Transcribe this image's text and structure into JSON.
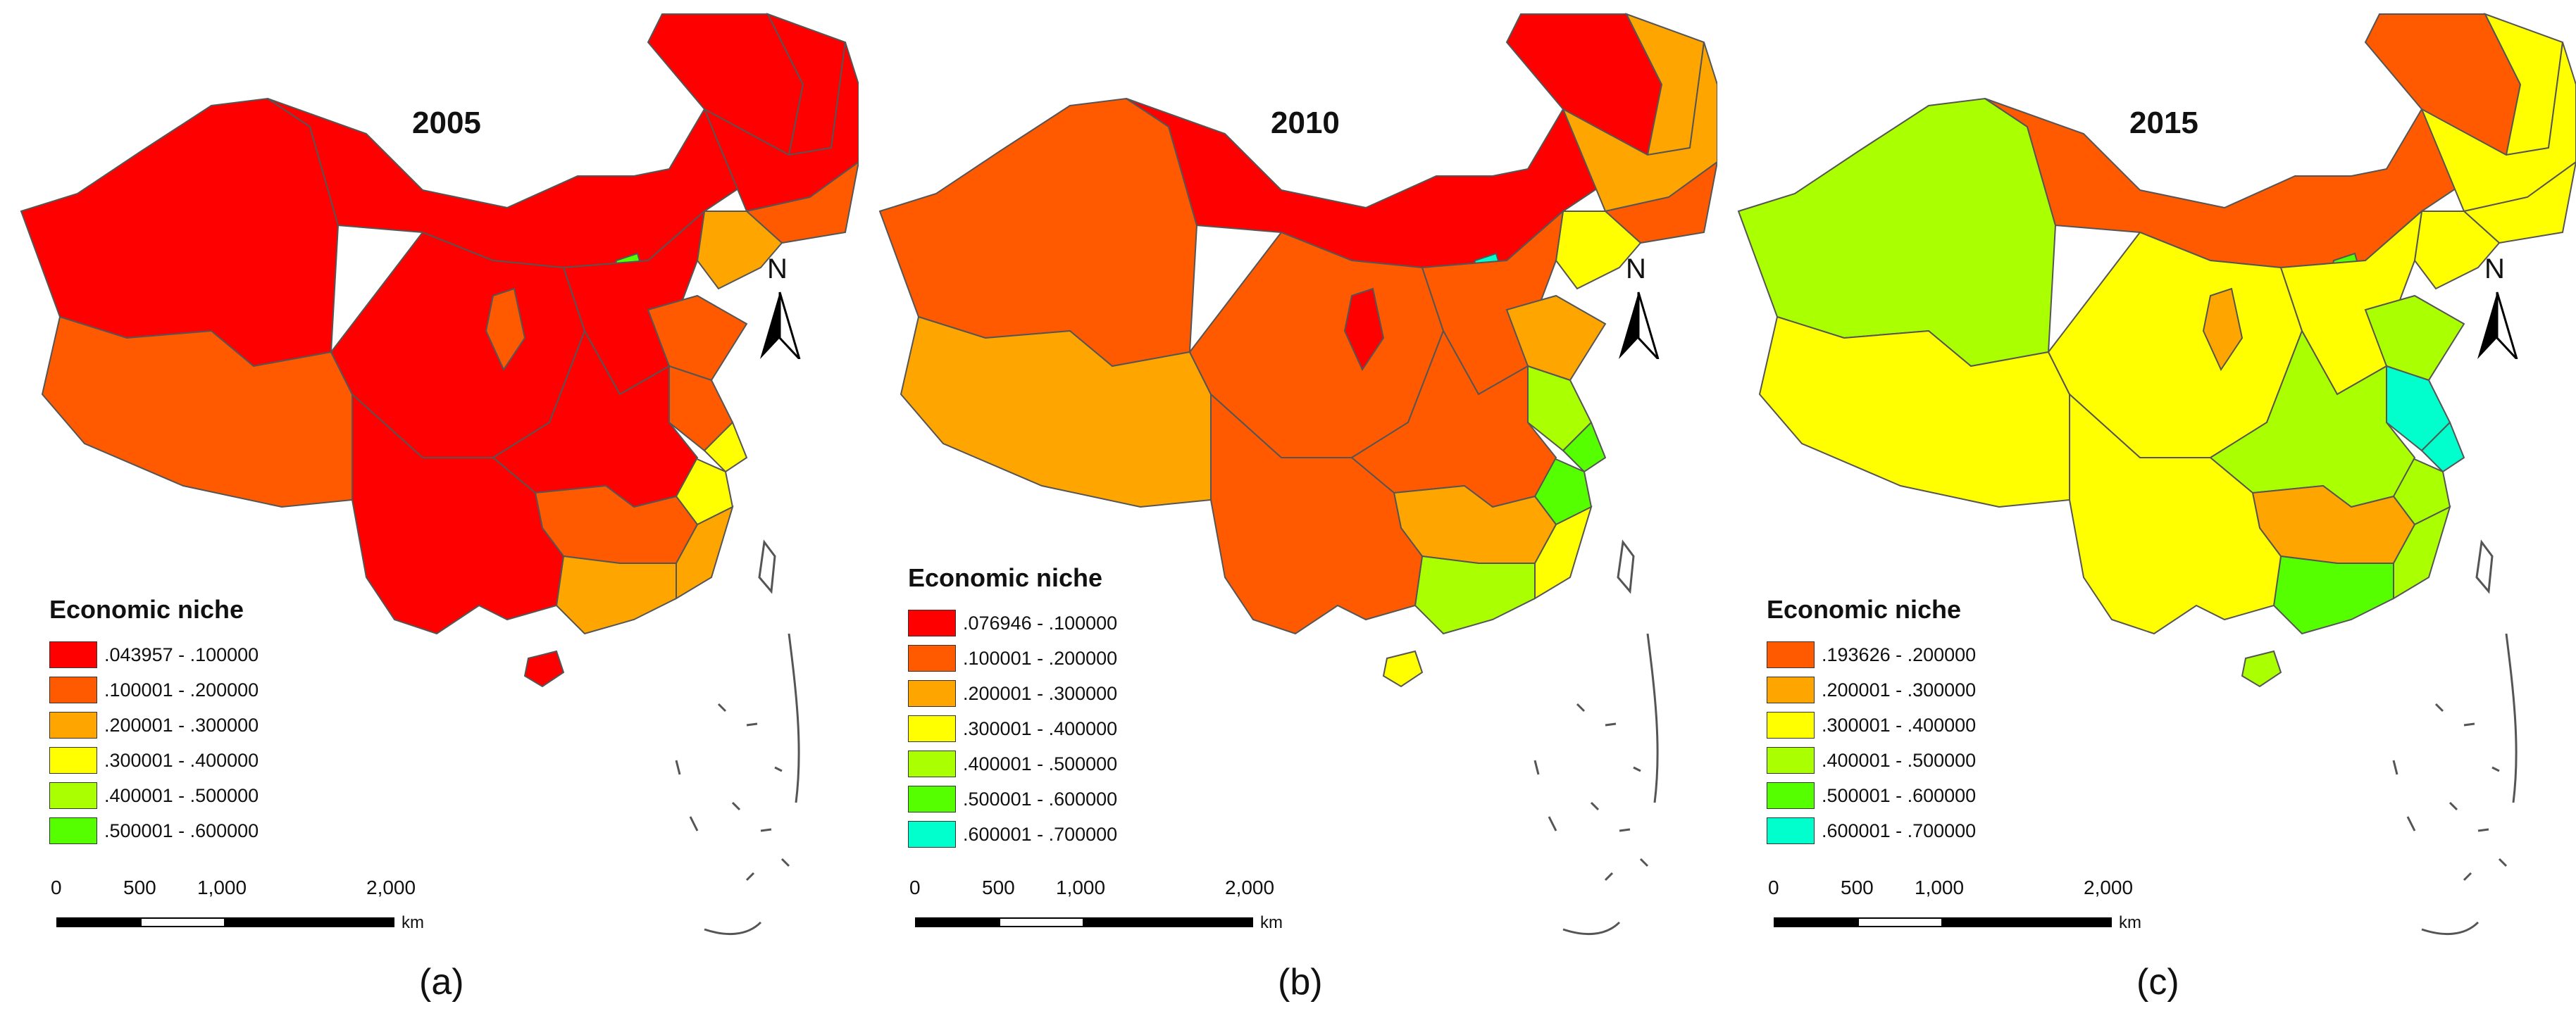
{
  "panels": [
    {
      "year": "2005",
      "caption": "(a)",
      "legend_title": "Economic niche",
      "legend": [
        {
          "label": ".043957 - .100000",
          "color": "#ff0000"
        },
        {
          "label": ".100001 - .200000",
          "color": "#ff5a00"
        },
        {
          "label": ".200001 - .300000",
          "color": "#ffa500"
        },
        {
          "label": ".300001 - .400000",
          "color": "#ffff00"
        },
        {
          "label": ".400001 - .500000",
          "color": "#aaff00"
        },
        {
          "label": ".500001 - .600000",
          "color": "#55ff00"
        }
      ],
      "regions": {
        "west": "#ff0000",
        "tibet": "#ff5a00",
        "inner_mongolia": "#ff0000",
        "northeast": "#ff0000",
        "heilongjiang": "#ff0000",
        "jilin": "#ff5a00",
        "liaoning": "#ffa500",
        "beijing": "#55ff00",
        "central_west": "#ff0000",
        "ningxia": "#ff5a00",
        "north_china": "#ff0000",
        "shandong": "#ff5a00",
        "jiangsu": "#ff5a00",
        "shanghai": "#ffff00",
        "zhejiang": "#ffff00",
        "central": "#ff0000",
        "hunan_jiangxi": "#ff5a00",
        "fujian": "#ffa500",
        "guangdong": "#ffa500",
        "southwest": "#ff0000",
        "hainan": "#ff0000"
      }
    },
    {
      "year": "2010",
      "caption": "(b)",
      "legend_title": "Economic niche",
      "legend": [
        {
          "label": ".076946 - .100000",
          "color": "#ff0000"
        },
        {
          "label": ".100001 - .200000",
          "color": "#ff5a00"
        },
        {
          "label": ".200001 - .300000",
          "color": "#ffa500"
        },
        {
          "label": ".300001 - .400000",
          "color": "#ffff00"
        },
        {
          "label": ".400001 - .500000",
          "color": "#aaff00"
        },
        {
          "label": ".500001 - .600000",
          "color": "#55ff00"
        },
        {
          "label": ".600001 - .700000",
          "color": "#00ffcc"
        }
      ],
      "regions": {
        "west": "#ff5a00",
        "tibet": "#ffa500",
        "inner_mongolia": "#ff0000",
        "northeast": "#ffa500",
        "heilongjiang": "#ffa500",
        "jilin": "#ff5a00",
        "liaoning": "#ffff00",
        "beijing": "#00ffcc",
        "central_west": "#ff5a00",
        "ningxia": "#ff0000",
        "north_china": "#ff5a00",
        "shandong": "#ffa500",
        "jiangsu": "#aaff00",
        "shanghai": "#55ff00",
        "zhejiang": "#55ff00",
        "central": "#ff5a00",
        "hunan_jiangxi": "#ffa500",
        "fujian": "#ffff00",
        "guangdong": "#aaff00",
        "southwest": "#ff5a00",
        "hainan": "#ffff00"
      }
    },
    {
      "year": "2015",
      "caption": "(c)",
      "legend_title": "Economic niche",
      "legend": [
        {
          "label": ".193626 - .200000",
          "color": "#ff5a00"
        },
        {
          "label": ".200001 - .300000",
          "color": "#ffa500"
        },
        {
          "label": ".300001 - .400000",
          "color": "#ffff00"
        },
        {
          "label": ".400001 - .500000",
          "color": "#aaff00"
        },
        {
          "label": ".500001 - .600000",
          "color": "#55ff00"
        },
        {
          "label": ".600001 - .700000",
          "color": "#00ffcc"
        }
      ],
      "regions": {
        "west": "#aaff00",
        "tibet": "#ffff00",
        "inner_mongolia": "#ff5a00",
        "northeast": "#ffff00",
        "heilongjiang": "#ffff00",
        "jilin": "#ffff00",
        "liaoning": "#ffff00",
        "beijing": "#55ff00",
        "central_west": "#ffff00",
        "ningxia": "#ffa500",
        "north_china": "#ffff00",
        "shandong": "#aaff00",
        "jiangsu": "#00ffcc",
        "shanghai": "#00ffcc",
        "zhejiang": "#aaff00",
        "central": "#aaff00",
        "hunan_jiangxi": "#ffa500",
        "fujian": "#aaff00",
        "guangdong": "#55ff00",
        "southwest": "#ffff00",
        "hainan": "#aaff00"
      }
    }
  ],
  "scale_bar": {
    "ticks": [
      "0",
      "500",
      "1,000",
      "2,000"
    ],
    "unit": "km"
  },
  "north_label": "N"
}
